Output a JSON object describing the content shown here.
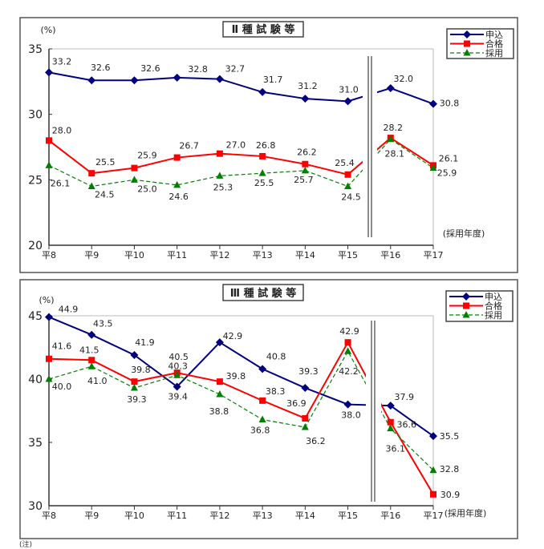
{
  "chart_data": [
    {
      "type": "line",
      "title": "Ⅱ 種 試 験 等",
      "ylabel": "(%)",
      "xlabel": "(採用年度)",
      "categories": [
        "平8",
        "平9",
        "平10",
        "平11",
        "平12",
        "平13",
        "平14",
        "平15",
        "平16",
        "平17"
      ],
      "ylim": [
        20,
        35
      ],
      "yticks": [
        20,
        25,
        30,
        35
      ],
      "legend_position": "top-right",
      "break_after_category": "平15",
      "series": [
        {
          "name": "申込",
          "color": "#000080",
          "marker": "diamond",
          "dash": false,
          "values": [
            33.2,
            32.6,
            32.6,
            32.8,
            32.7,
            31.7,
            31.2,
            31.0,
            32.0,
            30.8
          ]
        },
        {
          "name": "合格",
          "color": "#ff0000",
          "marker": "square",
          "dash": false,
          "values": [
            28.0,
            25.5,
            25.9,
            26.7,
            27.0,
            26.8,
            26.2,
            25.4,
            28.2,
            26.1
          ]
        },
        {
          "name": "採用",
          "color": "#008000",
          "marker": "triangle",
          "dash": true,
          "values": [
            26.1,
            24.5,
            25.0,
            24.6,
            25.3,
            25.5,
            25.7,
            24.5,
            28.1,
            25.9
          ]
        }
      ]
    },
    {
      "type": "line",
      "title": "Ⅲ 種 試 験 等",
      "ylabel": "(%)",
      "xlabel": "(採用年度)",
      "categories": [
        "平8",
        "平9",
        "平10",
        "平11",
        "平12",
        "平13",
        "平14",
        "平15",
        "平16",
        "平17"
      ],
      "ylim": [
        30,
        45
      ],
      "yticks": [
        30,
        35,
        40,
        45
      ],
      "legend_position": "top-right",
      "break_after_category": "平15",
      "series": [
        {
          "name": "申込",
          "color": "#000080",
          "marker": "diamond",
          "dash": false,
          "values": [
            44.9,
            43.5,
            41.9,
            39.4,
            42.9,
            40.8,
            39.3,
            38.0,
            37.9,
            35.5
          ]
        },
        {
          "name": "合格",
          "color": "#ff0000",
          "marker": "square",
          "dash": false,
          "values": [
            41.6,
            41.5,
            39.8,
            40.5,
            39.8,
            38.3,
            36.9,
            42.9,
            36.6,
            30.9
          ]
        },
        {
          "name": "採用",
          "color": "#008000",
          "marker": "triangle",
          "dash": true,
          "values": [
            40.0,
            41.0,
            39.3,
            40.3,
            38.8,
            36.8,
            36.2,
            42.2,
            36.1,
            32.8
          ]
        }
      ]
    }
  ],
  "footer_note": "(注)"
}
